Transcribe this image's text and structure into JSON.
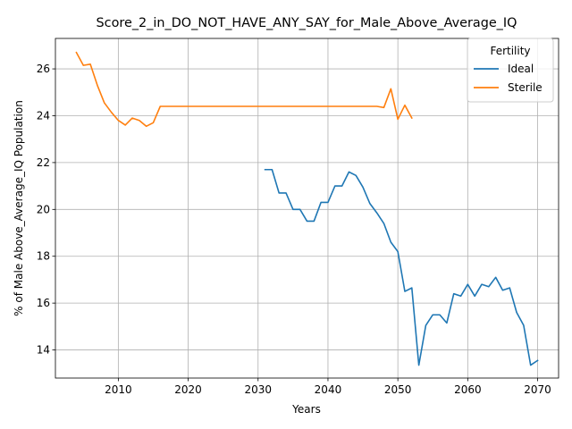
{
  "chart_data": {
    "type": "line",
    "title": "Score_2_in_DO_NOT_HAVE_ANY_SAY_for_Male_Above_Average_IQ",
    "xlabel": "Years",
    "ylabel": "% of Male Above_Average_IQ Population",
    "xlim": [
      2001,
      2073
    ],
    "ylim": [
      12.8,
      27.3
    ],
    "xticks": [
      2010,
      2020,
      2030,
      2040,
      2050,
      2060,
      2070
    ],
    "yticks": [
      14,
      16,
      18,
      20,
      22,
      24,
      26
    ],
    "grid": true,
    "legend": {
      "title": "Fertility",
      "placement": "top-right"
    },
    "series": [
      {
        "name": "Ideal",
        "color": "#1f77b4",
        "x": [
          2031,
          2032,
          2033,
          2034,
          2035,
          2036,
          2037,
          2038,
          2039,
          2040,
          2041,
          2042,
          2043,
          2044,
          2045,
          2046,
          2047,
          2048,
          2049,
          2050,
          2051,
          2052,
          2053,
          2054,
          2055,
          2056,
          2057,
          2058,
          2059,
          2060,
          2061,
          2062,
          2063,
          2064,
          2065,
          2066,
          2067,
          2068,
          2069,
          2070
        ],
        "y": [
          21.7,
          21.7,
          20.7,
          20.7,
          20.0,
          20.0,
          19.5,
          19.5,
          20.3,
          20.3,
          21.0,
          21.0,
          21.6,
          21.45,
          20.95,
          20.25,
          19.85,
          19.4,
          18.6,
          18.2,
          16.5,
          16.65,
          13.35,
          15.05,
          15.5,
          15.5,
          15.15,
          16.4,
          16.3,
          16.8,
          16.3,
          16.8,
          16.7,
          17.1,
          16.55,
          16.65,
          15.6,
          15.05,
          13.35,
          13.55
        ]
      },
      {
        "name": "Sterile",
        "color": "#ff7f0e",
        "x": [
          2004,
          2005,
          2006,
          2007,
          2008,
          2009,
          2010,
          2011,
          2012,
          2013,
          2014,
          2015,
          2016,
          2017,
          2018,
          2019,
          2020,
          2021,
          2022,
          2023,
          2024,
          2025,
          2026,
          2027,
          2028,
          2029,
          2030,
          2031,
          2032,
          2033,
          2034,
          2035,
          2036,
          2037,
          2038,
          2039,
          2040,
          2041,
          2042,
          2043,
          2044,
          2045,
          2046,
          2047,
          2048,
          2049,
          2050,
          2051,
          2052
        ],
        "y": [
          26.7,
          26.15,
          26.2,
          25.3,
          24.55,
          24.15,
          23.8,
          23.6,
          23.9,
          23.8,
          23.55,
          23.7,
          24.4,
          24.4,
          24.4,
          24.4,
          24.4,
          24.4,
          24.4,
          24.4,
          24.4,
          24.4,
          24.4,
          24.4,
          24.4,
          24.4,
          24.4,
          24.4,
          24.4,
          24.4,
          24.4,
          24.4,
          24.4,
          24.4,
          24.4,
          24.4,
          24.4,
          24.4,
          24.4,
          24.4,
          24.4,
          24.4,
          24.4,
          24.4,
          24.35,
          25.15,
          23.85,
          24.45,
          23.9
        ]
      }
    ]
  }
}
